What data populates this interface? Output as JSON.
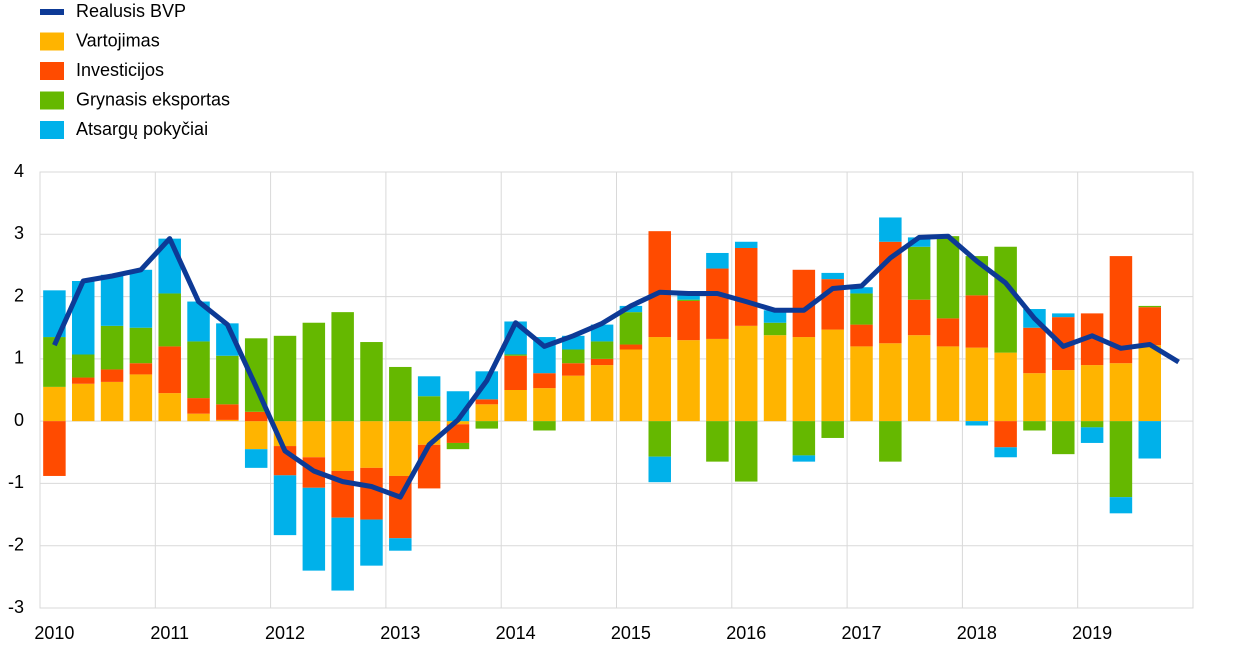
{
  "chart_data": {
    "type": "bar",
    "categories": [
      "2010",
      null,
      null,
      null,
      "2011",
      null,
      null,
      null,
      "2012",
      null,
      null,
      null,
      "2013",
      null,
      null,
      null,
      "2014",
      null,
      null,
      null,
      "2015",
      null,
      null,
      null,
      "2016",
      null,
      null,
      null,
      "2017",
      null,
      null,
      null,
      "2018",
      null,
      null,
      null,
      "2019",
      null,
      null,
      null
    ],
    "series": [
      {
        "name": "Realusis BVP",
        "type": "line",
        "color": "#0d3a96",
        "values": [
          1.22,
          2.25,
          2.33,
          2.43,
          2.93,
          1.92,
          1.55,
          0.55,
          -0.48,
          -0.8,
          -0.97,
          -1.05,
          -1.22,
          -0.38,
          0.02,
          0.65,
          1.58,
          1.2,
          1.37,
          1.57,
          1.85,
          2.07,
          2.05,
          2.05,
          1.92,
          1.78,
          1.78,
          2.13,
          2.17,
          2.62,
          2.95,
          2.97,
          2.57,
          2.22,
          1.65,
          1.2,
          1.37,
          1.17,
          1.23,
          0.95
        ]
      },
      {
        "name": "Vartojimas",
        "type": "bar",
        "color": "#ffb400",
        "values": [
          0.55,
          0.6,
          0.63,
          0.75,
          0.45,
          0.12,
          0.02,
          -0.45,
          -0.4,
          -0.58,
          -0.8,
          -0.75,
          -0.88,
          -0.38,
          -0.05,
          0.27,
          0.5,
          0.53,
          0.73,
          0.9,
          1.15,
          1.35,
          1.3,
          1.32,
          1.53,
          1.38,
          1.35,
          1.47,
          1.2,
          1.25,
          1.38,
          1.2,
          1.18,
          1.1,
          0.77,
          0.82,
          0.9,
          0.93,
          1.22,
          null
        ]
      },
      {
        "name": "Investicijos",
        "type": "bar",
        "color": "#ff4b00",
        "values": [
          -0.88,
          0.1,
          0.2,
          0.18,
          0.75,
          0.25,
          0.25,
          0.15,
          -0.47,
          -0.49,
          -0.75,
          -0.83,
          -1.0,
          -0.7,
          -0.3,
          0.08,
          0.55,
          0.24,
          0.2,
          0.1,
          0.08,
          1.7,
          0.63,
          1.13,
          1.25,
          0,
          1.08,
          0.81,
          0.35,
          1.63,
          0.57,
          0.45,
          0.84,
          -0.42,
          0.73,
          0.85,
          0.83,
          1.72,
          0.61,
          null
        ]
      },
      {
        "name": "Grynasis eksportas",
        "type": "bar",
        "color": "#65b800",
        "values": [
          0.8,
          0.37,
          0.7,
          0.57,
          0.85,
          0.91,
          0.78,
          1.18,
          1.37,
          1.58,
          1.75,
          1.27,
          0.87,
          0.4,
          -0.1,
          -0.12,
          0.02,
          -0.15,
          0.22,
          0.28,
          0.52,
          -0.57,
          0.02,
          -0.65,
          -0.97,
          0.2,
          -0.55,
          -0.27,
          0.5,
          -0.65,
          0.85,
          1.32,
          0.63,
          1.7,
          -0.15,
          -0.53,
          -0.1,
          -1.22,
          0.02,
          null
        ]
      },
      {
        "name": "Atsargų pokyčiai",
        "type": "bar",
        "color": "#00b1ea",
        "values": [
          0.75,
          1.18,
          0.82,
          0.93,
          0.88,
          0.64,
          0.52,
          -0.3,
          -0.96,
          -1.33,
          -1.17,
          -0.74,
          -0.2,
          0.32,
          0.48,
          0.45,
          0.53,
          0.58,
          0.22,
          0.27,
          0.1,
          -0.41,
          0.07,
          0.25,
          0.1,
          0.2,
          -0.1,
          0.1,
          0.1,
          0.39,
          0.15,
          0,
          -0.07,
          -0.16,
          0.3,
          0.06,
          -0.25,
          -0.26,
          -0.6,
          null
        ]
      }
    ],
    "ylim": [
      -3,
      4
    ],
    "yticks": [
      -3,
      -2,
      -1,
      0,
      1,
      2,
      3,
      4
    ],
    "grid": true
  }
}
